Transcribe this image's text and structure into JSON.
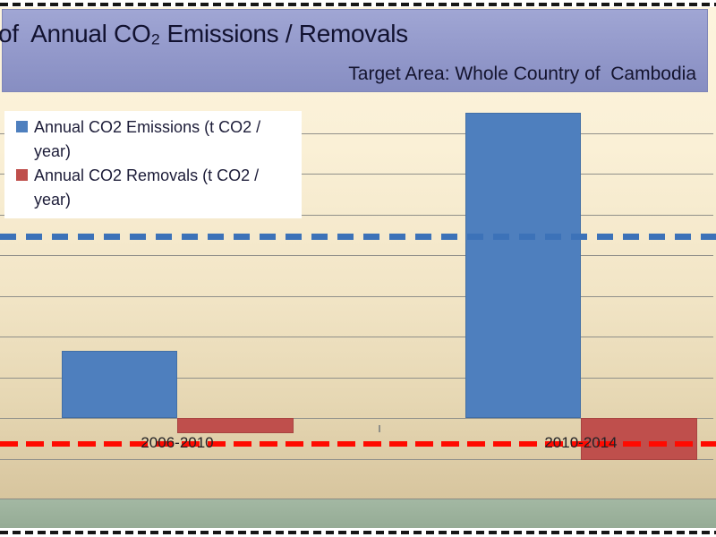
{
  "header": {
    "title": "of  Annual CO₂ Emissions / Removals",
    "subtitle": "Target Area: Whole Country of  Cambodia"
  },
  "legend": {
    "items": [
      {
        "label": "Annual CO2 Emissions (t CO2 / year)",
        "color": "#4E7FBE"
      },
      {
        "label": "Annual CO2 Removals (t CO2 / year)",
        "color": "#BF4F4C"
      }
    ]
  },
  "chart_data": {
    "type": "bar",
    "categories": [
      "2006-2010",
      "2010-2014"
    ],
    "series": [
      {
        "name": "Annual CO2 Emissions (t CO2 / year)",
        "color": "#4E7FBE",
        "values": [
          1.65,
          7.5
        ]
      },
      {
        "name": "Annual CO2 Removals (t CO2 / year)",
        "color": "#BF4F4C",
        "values": [
          -0.37,
          -1.03
        ]
      }
    ],
    "reference_lines": [
      {
        "series": "Annual CO2 Emissions (t CO2 / year)",
        "style": "dashed",
        "color": "#3C72B8",
        "value": 4.45
      },
      {
        "series": "Annual CO2 Removals (t CO2 / year)",
        "style": "dashed",
        "color": "#FF0A00",
        "value": -0.63
      }
    ],
    "ylim": [
      -2,
      8
    ],
    "grid": true,
    "legend_position": "top-left",
    "y_tick_labels": "not visible (chart cropped at left edge)",
    "unit_note": "values estimated in horizontal-gridline units; numeric axis scale is outside the visible crop"
  }
}
